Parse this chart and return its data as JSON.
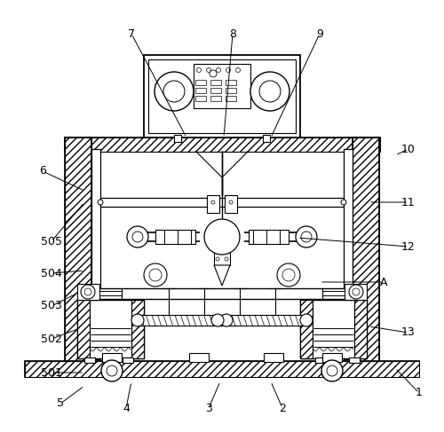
{
  "background_color": "#ffffff",
  "line_color": "#000000",
  "figsize": [
    5.0,
    4.87
  ],
  "dpi": 100,
  "labels_info": [
    [
      "1",
      472,
      443,
      445,
      415
    ],
    [
      "2",
      318,
      460,
      305,
      430
    ],
    [
      "3",
      235,
      460,
      248,
      430
    ],
    [
      "4",
      142,
      460,
      148,
      430
    ],
    [
      "5",
      68,
      455,
      95,
      435
    ],
    [
      "6",
      48,
      193,
      95,
      215
    ],
    [
      "7",
      148,
      38,
      210,
      155
    ],
    [
      "8",
      262,
      38,
      252,
      155
    ],
    [
      "9",
      360,
      38,
      305,
      155
    ],
    [
      "10",
      460,
      168,
      445,
      175
    ],
    [
      "11",
      460,
      228,
      415,
      228
    ],
    [
      "12",
      460,
      278,
      335,
      268
    ],
    [
      "13",
      460,
      375,
      415,
      368
    ],
    [
      "A",
      432,
      318,
      360,
      318
    ],
    [
      "501",
      58,
      420,
      95,
      420
    ],
    [
      "502",
      58,
      382,
      90,
      370
    ],
    [
      "503",
      58,
      345,
      88,
      330
    ],
    [
      "504",
      58,
      308,
      95,
      305
    ],
    [
      "505",
      58,
      272,
      95,
      228
    ]
  ]
}
